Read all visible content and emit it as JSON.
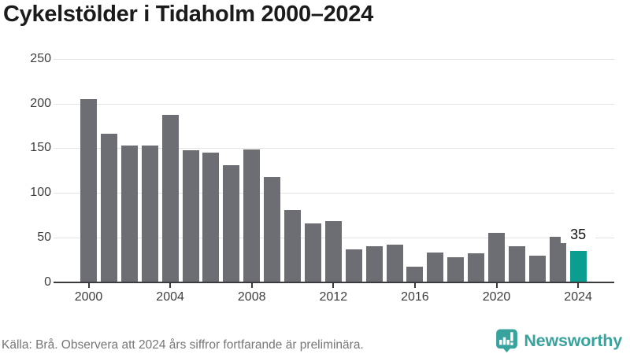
{
  "header": {
    "title": "Cykelstölder i Tidaholm 2000–2024"
  },
  "chart_data": {
    "type": "bar",
    "title": "Cykelstölder i Tidaholm 2000–2024",
    "x": [
      2000,
      2001,
      2002,
      2003,
      2004,
      2005,
      2006,
      2007,
      2008,
      2009,
      2010,
      2011,
      2012,
      2013,
      2014,
      2015,
      2016,
      2017,
      2018,
      2019,
      2020,
      2021,
      2022,
      2023,
      2024
    ],
    "values": [
      205,
      166,
      153,
      153,
      187,
      148,
      145,
      131,
      149,
      118,
      81,
      66,
      68,
      37,
      40,
      42,
      17,
      33,
      28,
      32,
      55,
      40,
      30,
      51,
      35
    ],
    "xlabel": "",
    "ylabel": "",
    "ylim": [
      0,
      250
    ],
    "yticks": [
      0,
      50,
      100,
      150,
      200,
      250
    ],
    "xticks": [
      2000,
      2004,
      2008,
      2012,
      2016,
      2020,
      2024
    ],
    "grid": "horizontal",
    "legend": "none",
    "bar_color": "#6d6d74",
    "highlight": {
      "year": 2024,
      "color": "#0b9e90",
      "label": "35"
    }
  },
  "footer": {
    "source_note": "Källa: Brå. Observera att 2024 års siffror fortfarande är preliminära.",
    "brand": {
      "name": "Newsworthy",
      "color": "#38a39d",
      "icon": "newsworthy-chart-bubble-icon"
    }
  }
}
